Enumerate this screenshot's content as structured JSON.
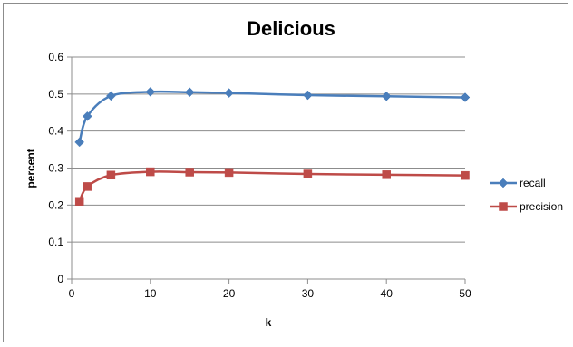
{
  "chart_data": {
    "type": "line",
    "title": "Delicious",
    "xlabel": "k",
    "ylabel": "percent",
    "xlim": [
      0,
      50
    ],
    "ylim": [
      0,
      0.6
    ],
    "x_ticks": [
      "0",
      "10",
      "20",
      "30",
      "40",
      "50"
    ],
    "y_ticks": [
      "0",
      "0.1",
      "0.2",
      "0.3",
      "0.4",
      "0.5",
      "0.6"
    ],
    "x": [
      1,
      2,
      5,
      10,
      15,
      20,
      30,
      40,
      50
    ],
    "grid": "horizontal",
    "legend_position": "right",
    "series": [
      {
        "name": "recall",
        "color": "#4a7ebb",
        "marker": "diamond",
        "values": [
          0.37,
          0.44,
          0.495,
          0.506,
          0.505,
          0.503,
          0.497,
          0.494,
          0.491
        ]
      },
      {
        "name": "precision",
        "color": "#be4b48",
        "marker": "square",
        "values": [
          0.21,
          0.25,
          0.281,
          0.29,
          0.289,
          0.288,
          0.284,
          0.282,
          0.28
        ]
      }
    ]
  }
}
